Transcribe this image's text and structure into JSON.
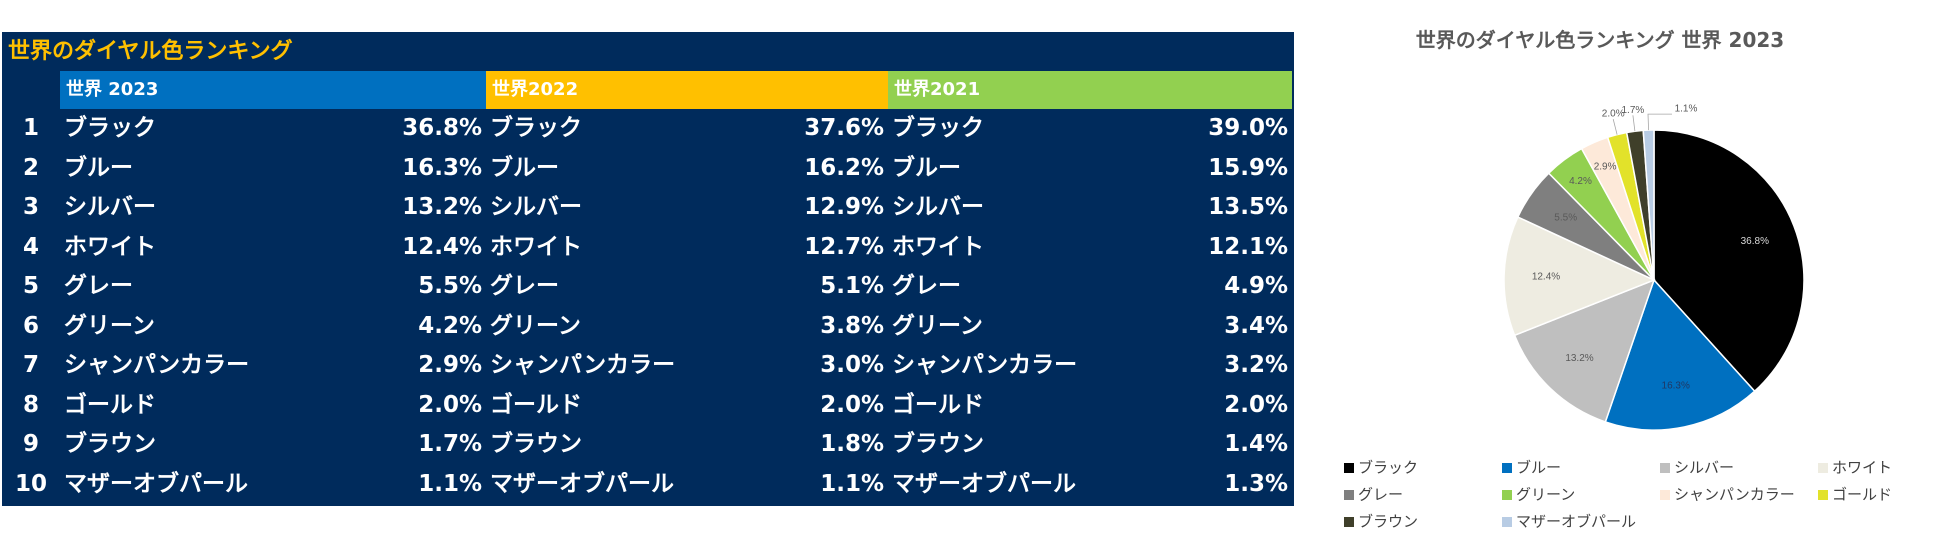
{
  "table": {
    "title": "世界のダイヤル色ランキング",
    "header_color": "#002B5C",
    "title_color": "#FFC000",
    "years": [
      {
        "label": "世界 2023",
        "color": "#0070C0"
      },
      {
        "label": "世界2022",
        "color": "#FFC000"
      },
      {
        "label": "世界2021",
        "color": "#92D050"
      }
    ],
    "rows": [
      {
        "rank": "1",
        "cells": [
          {
            "name": "ブラック",
            "pct": "36.8%"
          },
          {
            "name": "ブラック",
            "pct": "37.6%"
          },
          {
            "name": "ブラック",
            "pct": "39.0%"
          }
        ]
      },
      {
        "rank": "2",
        "cells": [
          {
            "name": "ブルー",
            "pct": "16.3%"
          },
          {
            "name": "ブルー",
            "pct": "16.2%"
          },
          {
            "name": "ブルー",
            "pct": "15.9%"
          }
        ]
      },
      {
        "rank": "3",
        "cells": [
          {
            "name": "シルバー",
            "pct": "13.2%"
          },
          {
            "name": "シルバー",
            "pct": "12.9%"
          },
          {
            "name": "シルバー",
            "pct": "13.5%"
          }
        ]
      },
      {
        "rank": "4",
        "cells": [
          {
            "name": "ホワイト",
            "pct": "12.4%"
          },
          {
            "name": "ホワイト",
            "pct": "12.7%"
          },
          {
            "name": "ホワイト",
            "pct": "12.1%"
          }
        ]
      },
      {
        "rank": "5",
        "cells": [
          {
            "name": "グレー",
            "pct": "5.5%"
          },
          {
            "name": "グレー",
            "pct": "5.1%"
          },
          {
            "name": "グレー",
            "pct": "4.9%"
          }
        ]
      },
      {
        "rank": "6",
        "cells": [
          {
            "name": "グリーン",
            "pct": "4.2%"
          },
          {
            "name": "グリーン",
            "pct": "3.8%"
          },
          {
            "name": "グリーン",
            "pct": "3.4%"
          }
        ]
      },
      {
        "rank": "7",
        "cells": [
          {
            "name": "シャンパンカラー",
            "pct": "2.9%"
          },
          {
            "name": "シャンパンカラー",
            "pct": "3.0%"
          },
          {
            "name": "シャンパンカラー",
            "pct": "3.2%"
          }
        ]
      },
      {
        "rank": "8",
        "cells": [
          {
            "name": "ゴールド",
            "pct": "2.0%"
          },
          {
            "name": "ゴールド",
            "pct": "2.0%"
          },
          {
            "name": "ゴールド",
            "pct": "2.0%"
          }
        ]
      },
      {
        "rank": "9",
        "cells": [
          {
            "name": "ブラウン",
            "pct": "1.7%"
          },
          {
            "name": "ブラウン",
            "pct": "1.8%"
          },
          {
            "name": "ブラウン",
            "pct": "1.4%"
          }
        ]
      },
      {
        "rank": "10",
        "cells": [
          {
            "name": "マザーオブパール",
            "pct": "1.1%"
          },
          {
            "name": "マザーオブパール",
            "pct": "1.1%"
          },
          {
            "name": "マザーオブパール",
            "pct": "1.3%"
          }
        ]
      }
    ]
  },
  "chart_data": {
    "type": "pie",
    "title": "世界のダイヤル色ランキング 世界 2023",
    "legend_position": "bottom",
    "categories": [
      "ブラック",
      "ブルー",
      "シルバー",
      "ホワイト",
      "グレー",
      "グリーン",
      "シャンパンカラー",
      "ゴールド",
      "ブラウン",
      "マザーオブパール"
    ],
    "values": [
      36.8,
      16.3,
      13.2,
      12.4,
      5.5,
      4.2,
      2.9,
      2.0,
      1.7,
      1.1
    ],
    "labels": [
      "36.8%",
      "16.3%",
      "13.2%",
      "12.4%",
      "5.5%",
      "4.2%",
      "2.9%",
      "2.0%",
      "1.7%",
      "1.1%"
    ],
    "colors": [
      "#000000",
      "#0070C0",
      "#BFBFBF",
      "#EEECE1",
      "#7F7F7F",
      "#92D050",
      "#FDE9D9",
      "#E2E22A",
      "#3F3F2A",
      "#B8CCE4"
    ]
  }
}
